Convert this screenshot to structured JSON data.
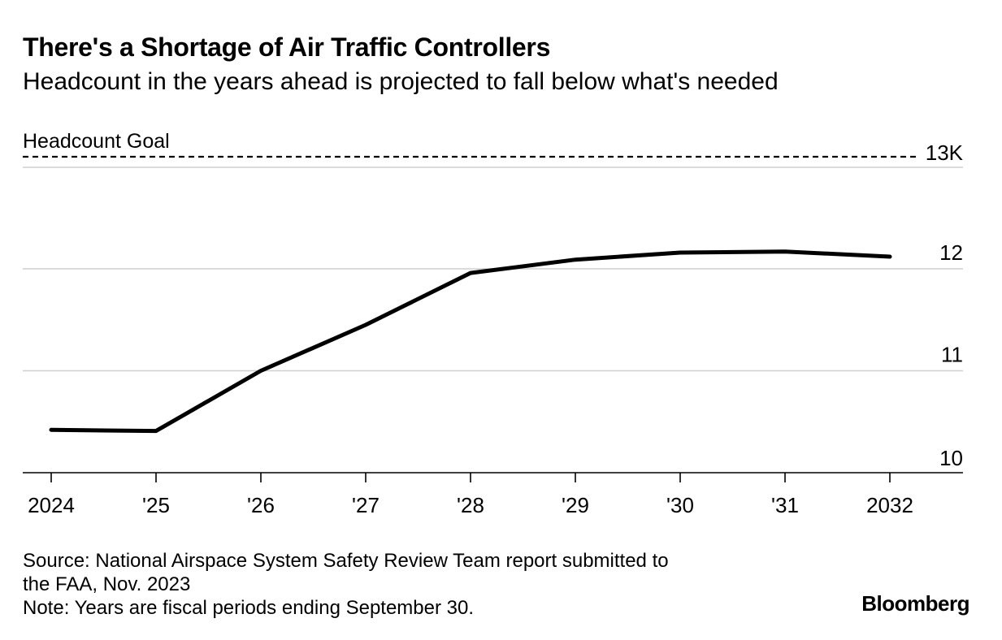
{
  "chart_data": {
    "type": "line",
    "title": "There's a Shortage of Air Traffic Controllers",
    "subtitle": "Headcount in the years ahead is projected to fall below what's needed",
    "x": [
      2024,
      2025,
      2026,
      2027,
      2028,
      2029,
      2030,
      2031,
      2032
    ],
    "x_tick_labels": [
      "2024",
      "'25",
      "'26",
      "'27",
      "'28",
      "'29",
      "'30",
      "'31",
      "2032"
    ],
    "series": [
      {
        "values": [
          10.42,
          10.41,
          11.0,
          11.45,
          11.96,
          12.09,
          12.16,
          12.17,
          12.12
        ],
        "color": "#000000"
      }
    ],
    "reference_line": {
      "label": "Headcount Goal",
      "value": 13.1,
      "style": "dashed"
    },
    "ylim": [
      10,
      13.1
    ],
    "y_ticks": [
      10,
      11,
      12,
      13
    ],
    "y_tick_labels": [
      "10",
      "11",
      "12",
      "13K"
    ],
    "y_axis_side": "right",
    "grid": true
  },
  "source": "Source: National Airspace System Safety Review Team report submitted to",
  "source_cont": "the FAA, Nov. 2023",
  "note": "Note: Years are fiscal periods ending September 30.",
  "logo": "Bloomberg"
}
